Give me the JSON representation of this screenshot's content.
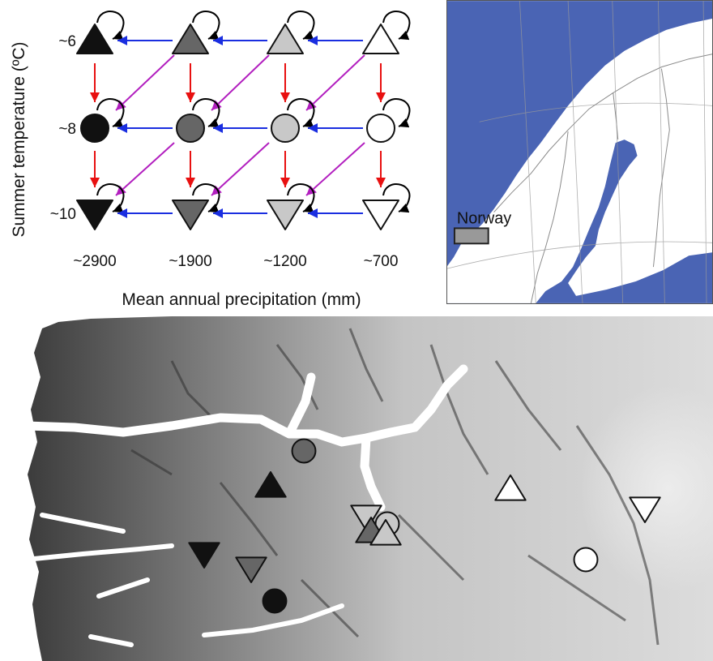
{
  "diagram": {
    "y_axis_label": "Summer temperature (ºC)",
    "x_axis_label": "Mean annual precipitation (mm)",
    "temperature_labels": [
      "~6",
      "~8",
      "~10"
    ],
    "temperature_shapes": [
      "triangle-up",
      "circle",
      "triangle-down"
    ],
    "precipitation_labels": [
      "~2900",
      "~1900",
      "~1200",
      "~700"
    ],
    "precipitation_fills": [
      "#111111",
      "#666666",
      "#c8c8c8",
      "#ffffff"
    ],
    "arrow_colors": {
      "warmer": "#e81010",
      "drier": "#1a2ee0",
      "diagonal": "#b21fbf",
      "self_loop": "#000000"
    }
  },
  "inset_map": {
    "country_label": "Norway",
    "sea_color": "#4a64b4",
    "land_color": "#ffffff",
    "legend_swatch_color": "#999999"
  },
  "sites": [
    {
      "shape": "circle",
      "fill": "#666666"
    },
    {
      "shape": "triangle-up",
      "fill": "#111111"
    },
    {
      "shape": "triangle-down",
      "fill": "#c8c8c8"
    },
    {
      "shape": "circle",
      "fill": "#c8c8c8"
    },
    {
      "shape": "triangle-up",
      "fill": "#666666"
    },
    {
      "shape": "triangle-up",
      "fill": "#c8c8c8"
    },
    {
      "shape": "triangle-down",
      "fill": "#111111"
    },
    {
      "shape": "triangle-down",
      "fill": "#666666"
    },
    {
      "shape": "circle",
      "fill": "#111111"
    },
    {
      "shape": "triangle-up",
      "fill": "#ffffff"
    },
    {
      "shape": "triangle-down",
      "fill": "#ffffff"
    },
    {
      "shape": "circle",
      "fill": "#ffffff"
    }
  ]
}
